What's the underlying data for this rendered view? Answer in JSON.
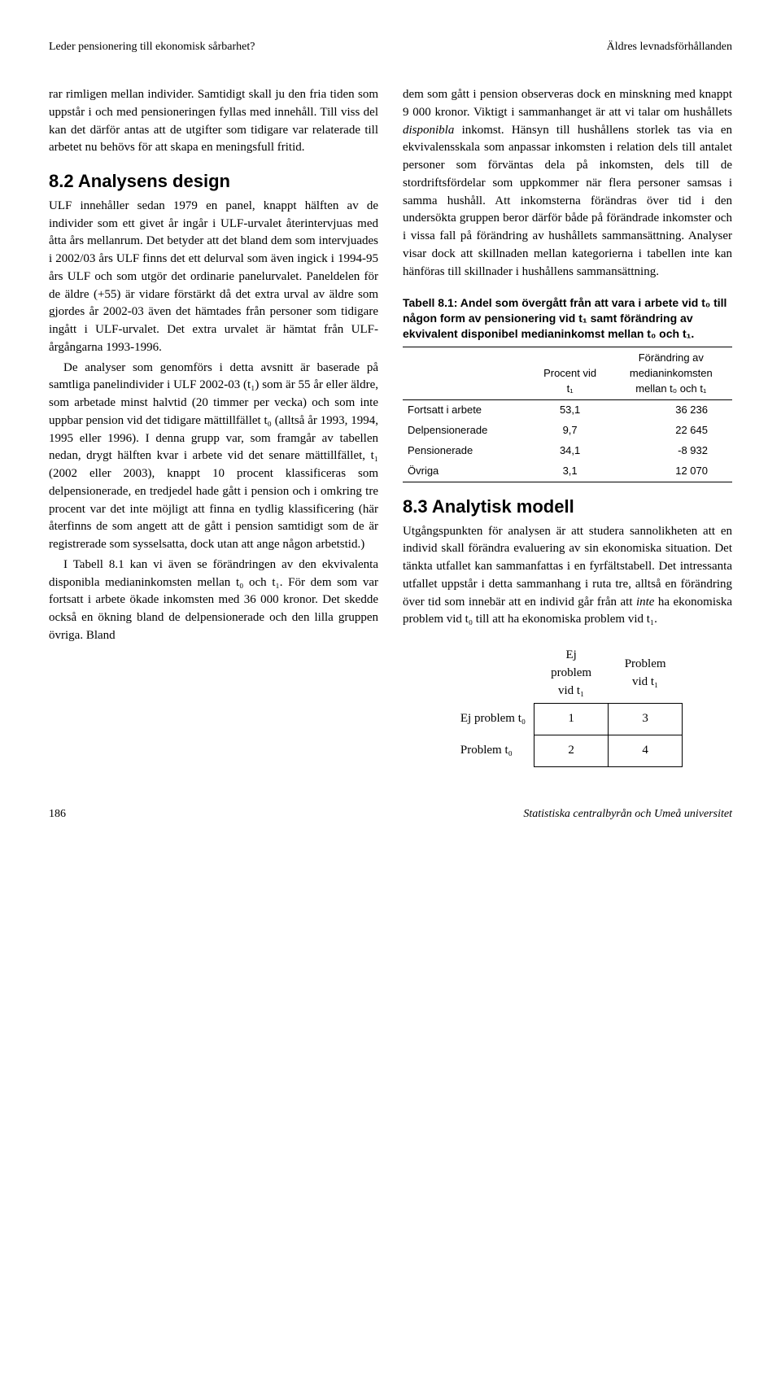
{
  "header": {
    "left": "Leder pensionering till ekonomisk sårbarhet?",
    "right": "Äldres levnadsförhållanden"
  },
  "leftCol": {
    "p1": "rar rimligen mellan individer. Samtidigt skall ju den fria tiden som uppstår i och med pensioneringen fyllas med innehåll. Till viss del kan det därför antas att de utgifter som tidigare var relaterade till arbetet nu behövs för att skapa en meningsfull fritid.",
    "h82": "8.2  Analysens design",
    "p82a": "ULF innehåller sedan 1979 en panel, knappt hälften av de individer som ett givet år ingår i ULF-urvalet återintervjuas med åtta års mellanrum. Det betyder att det bland dem som intervjuades i 2002/03 års ULF finns det ett delurval som även ingick i 1994-95 års ULF och som utgör det ordinarie panelurvalet. Paneldelen för de äldre (+55) är vidare förstärkt då det extra urval av äldre som gjordes år 2002-03 även det hämtades från personer som tidigare ingått i ULF-urvalet. Det extra urvalet är hämtat från ULF-årgångarna 1993-1996.",
    "p82b": "De analyser som genomförs i detta avsnitt är baserade på samtliga panelindivider i ULF 2002-03 (t₁) som är 55 år eller äldre, som arbetade minst halvtid (20 timmer per vecka) och som inte uppbar pension vid det tidigare mättillfället t₀ (alltså år 1993, 1994, 1995 eller 1996). I denna grupp var, som framgår av tabellen nedan, drygt hälften kvar i arbete vid det senare mättillfället, t₁ (2002 eller 2003), knappt 10 procent klassificeras som delpensionerade, en tredjedel hade gått i pension och i omkring tre procent var det inte möjligt att finna en tydlig klassificering (här återfinns de som angett att de gått i pension samtidigt som de är registrerade som sysselsatta, dock utan att ange någon arbetstid.)",
    "p82c": "I Tabell 8.1 kan vi även se förändringen av den ekvivalenta disponibla medianinkomsten mellan t₀ och t₁. För dem som var fortsatt i arbete ökade inkomsten med 36 000 kronor. Det skedde också en ökning bland de delpensionerade och den lilla gruppen övriga. Bland"
  },
  "rightCol": {
    "p1a": "dem som gått i pension observeras dock en minskning med knappt 9 000 kronor. Viktigt i sammanhanget är att vi talar om hushållets ",
    "p1b": "disponibla",
    "p1c": " inkomst. Hänsyn till hushållens storlek tas via en ekvivalensskala som anpassar inkomsten i relation dels till antalet personer som förväntas dela på inkomsten, dels till de stordriftsfördelar som uppkommer när flera personer samsas i samma hushåll. Att inkomsterna förändras över tid i den undersökta gruppen beror därför både på förändrade inkomster och i vissa fall på förändring av hushållets sammansättning. Analyser visar dock att skillnaden mellan kategorierna i tabellen inte kan hänföras till skillnader i hushållens sammansättning.",
    "tableCaption": "Tabell 8.1: Andel som övergått från att vara i arbete vid t₀ till någon form av pensionering vid t₁ samt förändring av ekvivalent disponibel medianinkomst mellan t₀ och t₁.",
    "table": {
      "col1": "",
      "col2a": "Procent vid",
      "col2b": "t₁",
      "col3a": "Förändring av",
      "col3b": "medianinkomsten",
      "col3c": "mellan t₀ och t₁",
      "rows": [
        {
          "label": "Fortsatt i arbete",
          "pct": "53,1",
          "change": "36 236"
        },
        {
          "label": "Delpensionerade",
          "pct": "9,7",
          "change": "22 645"
        },
        {
          "label": "Pensionerade",
          "pct": "34,1",
          "change": "-8 932"
        },
        {
          "label": "Övriga",
          "pct": "3,1",
          "change": "12 070"
        }
      ]
    },
    "h83": "8.3  Analytisk modell",
    "p83a": "Utgångspunkten för analysen är att studera sannolikheten att en individ skall förändra evaluering av sin ekonomiska situation. Det tänkta utfallet kan sammanfattas i en fyrfältstabell. Det intressanta utfallet uppstår i detta sammanhang i ruta tre, alltså en förändring över tid som innebär att en individ går från att ",
    "p83b": "inte",
    "p83c": " ha ekonomiska problem vid t₀ till att ha ekonomiska problem vid t₁.",
    "matrix": {
      "colA": "Ej problem vid t₁",
      "colB": "Problem vid t₁",
      "rowA": "Ej problem t₀",
      "rowB": "Problem t₀",
      "c": [
        "1",
        "3",
        "2",
        "4"
      ]
    }
  },
  "footer": {
    "page": "186",
    "pub": "Statistiska centralbyrån och Umeå universitet"
  }
}
